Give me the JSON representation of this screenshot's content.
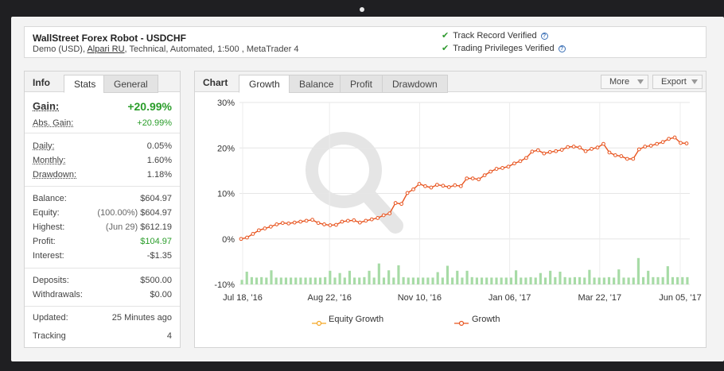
{
  "system": {
    "title": "WallStreet Forex Robot - USDCHF",
    "sub_prefix": "Demo (USD),",
    "broker": "Alpari RU",
    "sub_suffix": ", Technical, Automated, 1:500 , MetaTrader 4",
    "verified": [
      "Track Record Verified",
      "Trading Privileges Verified"
    ]
  },
  "info_tabs": {
    "heading": "Info",
    "tabs": [
      "Stats",
      "General"
    ]
  },
  "stats": {
    "gain_label": "Gain:",
    "gain_value": "+20.99%",
    "abs_gain_label": "Abs. Gain:",
    "abs_gain_value": "+20.99%",
    "daily_label": "Daily:",
    "daily_value": "0.05%",
    "monthly_label": "Monthly:",
    "monthly_value": "1.60%",
    "drawdown_label": "Drawdown:",
    "drawdown_value": "1.18%",
    "balance_label": "Balance:",
    "balance_value": "$604.97",
    "equity_label": "Equity:",
    "equity_pre": "(100.00%)",
    "equity_value": "$604.97",
    "highest_label": "Highest:",
    "highest_pre": "(Jun 29)",
    "highest_value": "$612.19",
    "profit_label": "Profit:",
    "profit_value": "$104.97",
    "interest_label": "Interest:",
    "interest_value": "-$1.35",
    "deposits_label": "Deposits:",
    "deposits_value": "$500.00",
    "withdrawals_label": "Withdrawals:",
    "withdrawals_value": "$0.00",
    "updated_label": "Updated:",
    "updated_value": "25 Minutes ago",
    "tracking_label": "Tracking",
    "tracking_value": "4"
  },
  "chart_tabs": {
    "heading": "Chart",
    "tabs": [
      "Growth",
      "Balance",
      "Profit",
      "Drawdown"
    ],
    "more_label": "More",
    "export_label": "Export"
  },
  "colors": {
    "growth_line": "#e8541f",
    "equity_line": "#f5a623",
    "bars": "#a7dba6",
    "gain_green": "#2a9d2a"
  },
  "chart_data": {
    "type": "line",
    "ylim": [
      -10,
      30
    ],
    "y_ticks": [
      "30%",
      "20%",
      "10%",
      "0%",
      "-10%"
    ],
    "y_tick_values": [
      30,
      20,
      10,
      0,
      -10
    ],
    "x_tick_labels": [
      "Jul 18, '16",
      "Aug 22, '16",
      "Nov 10, '16",
      "Jan 06, '17",
      "Mar 22, '17",
      "Jun 05, '17"
    ],
    "legend": [
      "Equity Growth",
      "Growth"
    ],
    "series": [
      {
        "name": "Growth",
        "values": [
          0,
          0.3,
          1.1,
          1.9,
          2.3,
          2.7,
          3.2,
          3.5,
          3.4,
          3.6,
          3.8,
          4.0,
          4.2,
          3.5,
          3.2,
          3.0,
          3.1,
          3.8,
          4.0,
          4.1,
          3.6,
          4.0,
          4.3,
          4.6,
          5.2,
          5.6,
          7.9,
          7.7,
          10.1,
          10.9,
          12.1,
          11.6,
          11.3,
          11.9,
          11.7,
          11.4,
          11.8,
          11.6,
          13.3,
          13.3,
          13.1,
          14.0,
          14.8,
          15.4,
          15.6,
          15.9,
          16.6,
          17.1,
          17.8,
          19.2,
          19.5,
          18.8,
          19.1,
          19.3,
          19.6,
          20.2,
          20.3,
          20.1,
          19.3,
          19.8,
          20.1,
          20.9,
          19.0,
          18.4,
          18.2,
          17.6,
          17.6,
          19.7,
          20.3,
          20.5,
          20.9,
          21.3,
          22.0,
          22.3,
          21.1,
          21.0
        ]
      }
    ],
    "bars": [
      1,
      2.8,
      1.6,
      1.5,
      1.6,
      1.5,
      3.1,
      1.5,
      1.5,
      1.5,
      1.5,
      1.5,
      1.5,
      1.5,
      1.5,
      1.5,
      1.5,
      1.6,
      3.0,
      1.5,
      2.5,
      1.5,
      3.0,
      1.5,
      1.5,
      1.6,
      3.0,
      1.5,
      4.6,
      1.5,
      3.1,
      1.5,
      4.2,
      1.6,
      1.5,
      1.5,
      1.5,
      1.5,
      1.5,
      1.5,
      2.7,
      1.5,
      4.1,
      1.5,
      3.0,
      1.5,
      3.0,
      1.6,
      1.5,
      1.5,
      1.5,
      1.5,
      1.5,
      1.5,
      1.5,
      1.5,
      3.1,
      1.5,
      1.5,
      1.6,
      1.5,
      2.5,
      1.5,
      3.0,
      1.6,
      2.8,
      1.6,
      1.5,
      1.6,
      1.6,
      1.5,
      3.2,
      1.5,
      1.5,
      1.5,
      1.6,
      1.5,
      3.3,
      1.5,
      1.5,
      1.5,
      5.8,
      1.6,
      3.0,
      1.6,
      1.6,
      1.6,
      4.0,
      1.6,
      1.6,
      1.6,
      1.6
    ]
  }
}
